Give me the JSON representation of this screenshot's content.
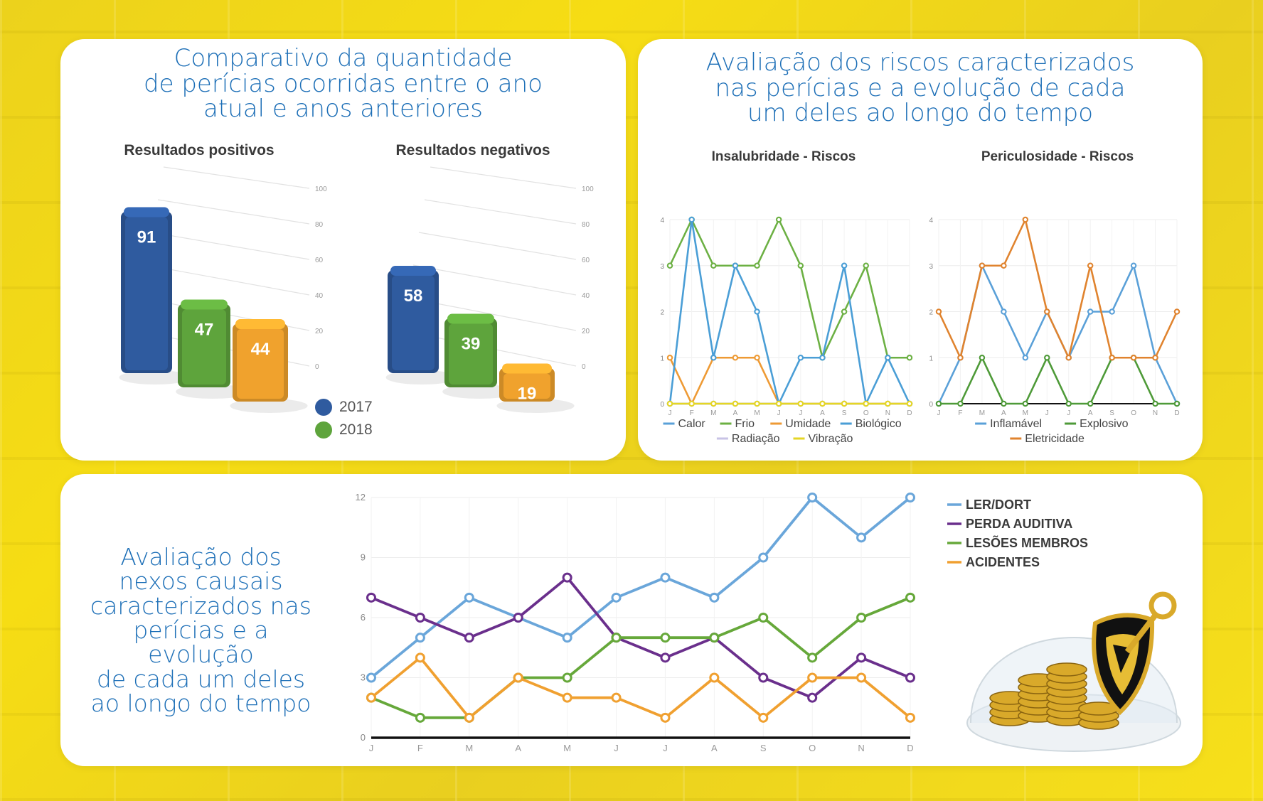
{
  "panel1": {
    "title_lines": [
      "Comparativo da quantidade",
      "de perícias ocorridas entre o ano",
      "atual e anos anteriores"
    ],
    "legend": [
      {
        "label": "2017",
        "color": "#2f5b9f"
      },
      {
        "label": "2018",
        "color": "#5ea43c"
      }
    ]
  },
  "panel2": {
    "title_lines": [
      "Avaliação dos riscos caracterizados",
      "nas perícias e a evolução de cada",
      "um deles ao longo do tempo"
    ]
  },
  "panel3": {
    "title_lines": [
      "Avaliação dos",
      "nexos causais",
      "caracterizados nas",
      "perícias e a evolução",
      "de cada um deles",
      "ao longo do tempo"
    ]
  },
  "chart_data": [
    {
      "type": "bar",
      "title": "Resultados positivos",
      "categories": [
        "2017",
        "2018",
        ""
      ],
      "values": [
        91,
        47,
        44
      ],
      "colors": [
        "#2f5b9f",
        "#5ea43c",
        "#f0a22d"
      ],
      "yticks": [
        0,
        20,
        40,
        60,
        80,
        100
      ],
      "ylim": [
        0,
        100
      ]
    },
    {
      "type": "bar",
      "title": "Resultados negativos",
      "categories": [
        "2017",
        "2018",
        ""
      ],
      "values": [
        58,
        39,
        19
      ],
      "colors": [
        "#2f5b9f",
        "#5ea43c",
        "#f0a22d"
      ],
      "yticks": [
        0,
        20,
        40,
        60,
        80,
        100
      ],
      "ylim": [
        0,
        100
      ]
    },
    {
      "type": "line",
      "title": "Insalubridade - Riscos",
      "x": [
        "J",
        "F",
        "M",
        "A",
        "M",
        "J",
        "J",
        "A",
        "S",
        "O",
        "N",
        "D"
      ],
      "yticks": [
        0,
        1,
        2,
        3,
        4
      ],
      "ylim": [
        0,
        4
      ],
      "legend_rows": [
        [
          "Calor",
          "Frio",
          "Umidade",
          "Biológico"
        ],
        [
          "Radiação",
          "Vibração"
        ]
      ],
      "series": [
        {
          "name": "Calor",
          "color": "#5aa0d8",
          "values": [
            0,
            0,
            0,
            0,
            0,
            0,
            0,
            0,
            0,
            0,
            0,
            0
          ]
        },
        {
          "name": "Frio",
          "color": "#6cb043",
          "values": [
            3,
            4,
            3,
            3,
            3,
            4,
            3,
            1,
            2,
            3,
            1,
            1
          ]
        },
        {
          "name": "Umidade",
          "color": "#ee9a34",
          "values": [
            1,
            0,
            1,
            1,
            1,
            0,
            0,
            0,
            0,
            0,
            0,
            0
          ]
        },
        {
          "name": "Biológico",
          "color": "#4a9ed6",
          "values": [
            0,
            4,
            1,
            3,
            2,
            0,
            1,
            1,
            3,
            0,
            1,
            0
          ]
        },
        {
          "name": "Radiação",
          "color": "#c8c3e6",
          "values": [
            0,
            0,
            0,
            0,
            0,
            0,
            0,
            0,
            0,
            0,
            0,
            0
          ]
        },
        {
          "name": "Vibração",
          "color": "#e5d625",
          "values": [
            0,
            0,
            0,
            0,
            0,
            0,
            0,
            0,
            0,
            0,
            0,
            0
          ]
        }
      ]
    },
    {
      "type": "line",
      "title": "Periculosidade - Riscos",
      "x": [
        "J",
        "F",
        "M",
        "A",
        "M",
        "J",
        "J",
        "A",
        "S",
        "O",
        "N",
        "D"
      ],
      "yticks": [
        0,
        1,
        2,
        3,
        4
      ],
      "ylim": [
        0,
        4
      ],
      "legend_rows": [
        [
          "Inflamável",
          "Explosivo"
        ],
        [
          "Eletricidade"
        ]
      ],
      "series": [
        {
          "name": "Inflamável",
          "color": "#5aa0d8",
          "values": [
            0,
            1,
            3,
            2,
            1,
            2,
            1,
            2,
            2,
            3,
            1,
            0
          ]
        },
        {
          "name": "Explosivo",
          "color": "#4e9a38",
          "values": [
            0,
            0,
            1,
            0,
            0,
            1,
            0,
            0,
            1,
            1,
            0,
            0
          ]
        },
        {
          "name": "Eletricidade",
          "color": "#e0832e",
          "values": [
            2,
            1,
            3,
            3,
            4,
            2,
            1,
            3,
            1,
            1,
            1,
            2
          ]
        }
      ]
    },
    {
      "type": "line",
      "title": "",
      "x": [
        "J",
        "F",
        "M",
        "A",
        "M",
        "J",
        "J",
        "A",
        "S",
        "O",
        "N",
        "D"
      ],
      "yticks": [
        0,
        3,
        6,
        9,
        12
      ],
      "ylim": [
        0,
        12
      ],
      "series": [
        {
          "name": "LER/DORT",
          "color": "#6aa6da",
          "values": [
            3,
            5,
            7,
            6,
            5,
            7,
            8,
            7,
            9,
            12,
            10,
            12
          ]
        },
        {
          "name": "PERDA AUDITIVA",
          "color": "#6a2f8c",
          "values": [
            7,
            6,
            5,
            6,
            8,
            5,
            4,
            5,
            3,
            2,
            4,
            3
          ]
        },
        {
          "name": "LESÕES MEMBROS",
          "color": "#66a83a",
          "values": [
            2,
            1,
            1,
            3,
            3,
            5,
            5,
            5,
            6,
            4,
            6,
            7
          ]
        },
        {
          "name": "ACIDENTES",
          "color": "#f0a030",
          "values": [
            2,
            4,
            1,
            3,
            2,
            2,
            1,
            3,
            1,
            3,
            3,
            1
          ]
        }
      ]
    }
  ]
}
